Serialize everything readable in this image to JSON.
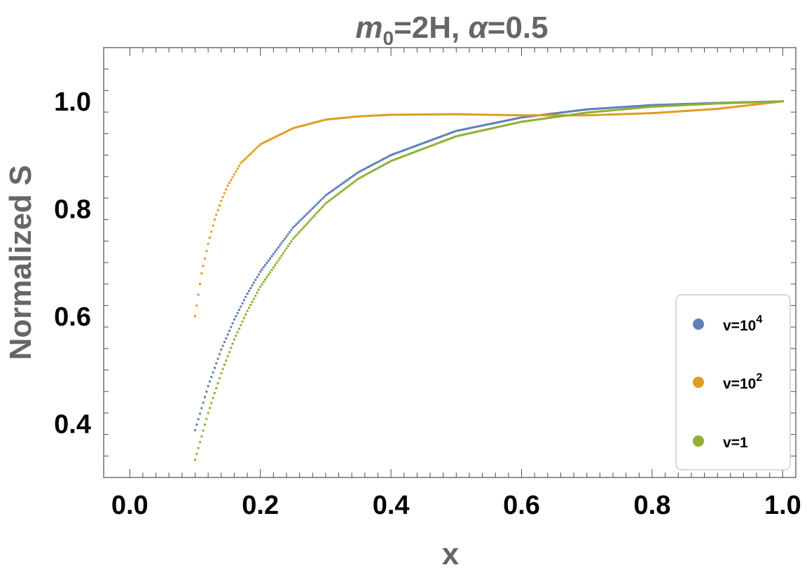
{
  "chart_data": {
    "type": "scatter",
    "title_parts": {
      "m": "m",
      "sub": "0",
      "rest": "=2H, ",
      "alpha": "α",
      "alpha_value": "=0.5"
    },
    "xlabel": "x",
    "ylabel": "Normalized S",
    "xlim": [
      -0.04,
      1.02
    ],
    "ylim": [
      0.3,
      1.1
    ],
    "xticks": [
      "0.0",
      "0.2",
      "0.4",
      "0.6",
      "0.8",
      "1.0"
    ],
    "yticks": [
      "0.4",
      "0.6",
      "0.8",
      "1.0"
    ],
    "grid": false,
    "legend_position": "bottom-right",
    "series": [
      {
        "name": "v=10",
        "exponent": "4",
        "color": "#5e81b5",
        "x": [
          0.1,
          0.12,
          0.14,
          0.16,
          0.18,
          0.2,
          0.25,
          0.3,
          0.35,
          0.4,
          0.5,
          0.6,
          0.7,
          0.8,
          0.9,
          1.0
        ],
        "y": [
          0.388,
          0.47,
          0.538,
          0.594,
          0.642,
          0.683,
          0.765,
          0.825,
          0.868,
          0.9,
          0.945,
          0.97,
          0.985,
          0.993,
          0.997,
          1.0
        ]
      },
      {
        "name": "v=10",
        "exponent": "2",
        "color": "#e19c24",
        "x": [
          0.1,
          0.11,
          0.12,
          0.13,
          0.14,
          0.15,
          0.17,
          0.2,
          0.25,
          0.3,
          0.35,
          0.4,
          0.5,
          0.6,
          0.7,
          0.8,
          0.9,
          1.0
        ],
        "y": [
          0.6,
          0.68,
          0.735,
          0.78,
          0.815,
          0.843,
          0.885,
          0.92,
          0.95,
          0.966,
          0.972,
          0.975,
          0.976,
          0.974,
          0.974,
          0.978,
          0.986,
          1.0
        ]
      },
      {
        "name": "v=1",
        "color": "#8fb032",
        "x": [
          0.1,
          0.12,
          0.14,
          0.16,
          0.18,
          0.2,
          0.25,
          0.3,
          0.35,
          0.4,
          0.5,
          0.6,
          0.7,
          0.8,
          0.9,
          1.0
        ],
        "y": [
          0.333,
          0.42,
          0.494,
          0.557,
          0.61,
          0.655,
          0.744,
          0.81,
          0.856,
          0.889,
          0.935,
          0.962,
          0.979,
          0.99,
          0.996,
          1.0
        ]
      }
    ]
  }
}
